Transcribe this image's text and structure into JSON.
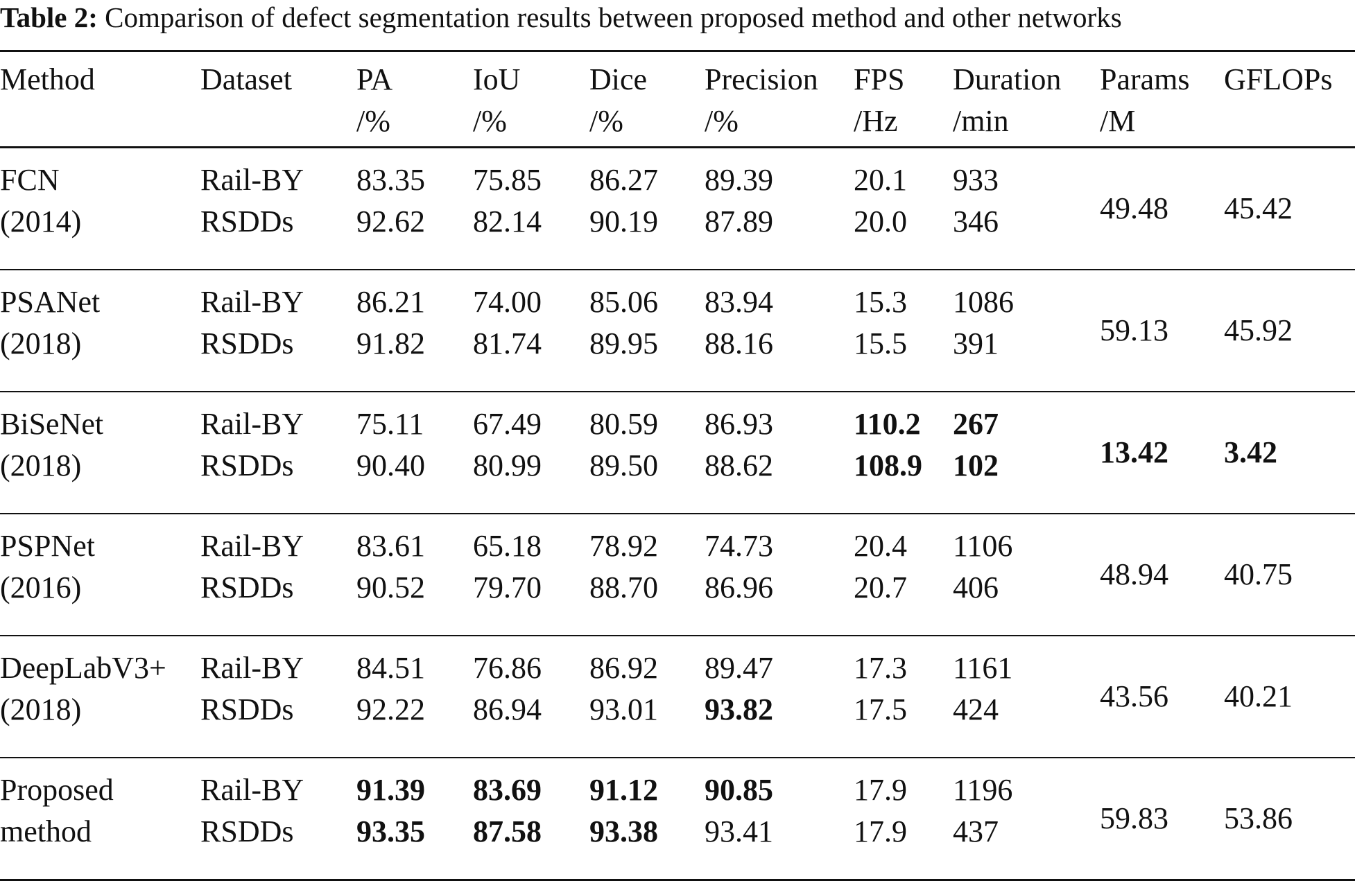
{
  "caption": {
    "label": "Table 2:",
    "text": "Comparison of defect segmentation results between proposed method and other networks"
  },
  "columns": [
    {
      "name": "Method",
      "unit": ""
    },
    {
      "name": "Dataset",
      "unit": ""
    },
    {
      "name": "PA",
      "unit": "/%"
    },
    {
      "name": "IoU",
      "unit": "/%"
    },
    {
      "name": "Dice",
      "unit": "/%"
    },
    {
      "name": "Precision",
      "unit": "/%"
    },
    {
      "name": "FPS",
      "unit": "/Hz"
    },
    {
      "name": "Duration",
      "unit": "/min"
    },
    {
      "name": "Params",
      "unit": "/M"
    },
    {
      "name": "GFLOPs",
      "unit": ""
    }
  ],
  "rows": [
    {
      "method": [
        "FCN",
        "(2014)"
      ],
      "datasets": [
        "Rail-BY",
        "RSDDs"
      ],
      "pa": [
        "83.35",
        "92.62"
      ],
      "iou": [
        "75.85",
        "82.14"
      ],
      "dice": [
        "86.27",
        "90.19"
      ],
      "precision": [
        "89.39",
        "87.89"
      ],
      "fps": [
        "20.1",
        "20.0"
      ],
      "duration": [
        "933",
        "346"
      ],
      "params": "49.48",
      "gflops": "45.42"
    },
    {
      "method": [
        "PSANet",
        "(2018)"
      ],
      "datasets": [
        "Rail-BY",
        "RSDDs"
      ],
      "pa": [
        "86.21",
        "91.82"
      ],
      "iou": [
        "74.00",
        "81.74"
      ],
      "dice": [
        "85.06",
        "89.95"
      ],
      "precision": [
        "83.94",
        "88.16"
      ],
      "fps": [
        "15.3",
        "15.5"
      ],
      "duration": [
        "1086",
        "391"
      ],
      "params": "59.13",
      "gflops": "45.92"
    },
    {
      "method": [
        "BiSeNet",
        "(2018)"
      ],
      "datasets": [
        "Rail-BY",
        "RSDDs"
      ],
      "pa": [
        "75.11",
        "90.40"
      ],
      "iou": [
        "67.49",
        "80.99"
      ],
      "dice": [
        "80.59",
        "89.50"
      ],
      "precision": [
        "86.93",
        "88.62"
      ],
      "fps": [
        "110.2",
        "108.9"
      ],
      "duration": [
        "267",
        "102"
      ],
      "params": "13.42",
      "gflops": "3.42"
    },
    {
      "method": [
        "PSPNet",
        "(2016)"
      ],
      "datasets": [
        "Rail-BY",
        "RSDDs"
      ],
      "pa": [
        "83.61",
        "90.52"
      ],
      "iou": [
        "65.18",
        "79.70"
      ],
      "dice": [
        "78.92",
        "88.70"
      ],
      "precision": [
        "74.73",
        "86.96"
      ],
      "fps": [
        "20.4",
        "20.7"
      ],
      "duration": [
        "1106",
        "406"
      ],
      "params": "48.94",
      "gflops": "40.75"
    },
    {
      "method": [
        "DeepLabV3+",
        "(2018)"
      ],
      "datasets": [
        "Rail-BY",
        "RSDDs"
      ],
      "pa": [
        "84.51",
        "92.22"
      ],
      "iou": [
        "76.86",
        "86.94"
      ],
      "dice": [
        "86.92",
        "93.01"
      ],
      "precision": [
        "89.47",
        "93.82"
      ],
      "fps": [
        "17.3",
        "17.5"
      ],
      "duration": [
        "1161",
        "424"
      ],
      "params": "43.56",
      "gflops": "40.21"
    },
    {
      "method": [
        "Proposed",
        "method"
      ],
      "datasets": [
        "Rail-BY",
        "RSDDs"
      ],
      "pa": [
        "91.39",
        "93.35"
      ],
      "iou": [
        "83.69",
        "87.58"
      ],
      "dice": [
        "91.12",
        "93.38"
      ],
      "precision": [
        "90.85",
        "93.41"
      ],
      "fps": [
        "17.9",
        "17.9"
      ],
      "duration": [
        "1196",
        "437"
      ],
      "params": "59.83",
      "gflops": "53.86"
    }
  ]
}
